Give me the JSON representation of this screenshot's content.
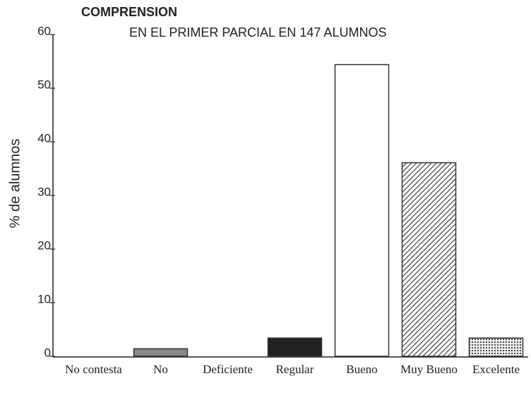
{
  "chart_data": {
    "type": "bar",
    "title": "COMPRENSION",
    "subtitle": "EN EL PRIMER PARCIAL EN 147 ALUMNOS",
    "y_label": "% de alumnos",
    "categories": [
      "No contesta",
      "No",
      "Deficiente",
      "Regular",
      "Bueno",
      "Muy Bueno",
      "Excelente"
    ],
    "values": [
      0,
      1.4,
      0,
      3.4,
      54.4,
      36.1,
      3.4
    ],
    "colors": [
      "#ffffff",
      "#888888",
      "#ffffff",
      "#222222",
      "#ffffff",
      "#ffffff",
      "#ffffff"
    ],
    "patterns": [
      null,
      null,
      null,
      null,
      null,
      "diagonal",
      "dots"
    ],
    "ylim": [
      0,
      60
    ],
    "yticks": [
      0,
      10,
      20,
      30,
      40,
      50,
      60
    ],
    "grid": false
  }
}
